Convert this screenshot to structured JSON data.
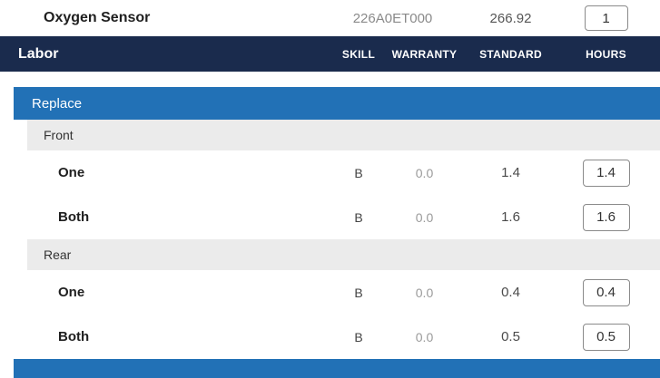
{
  "part": {
    "name": "Oxygen Sensor",
    "number": "226A0ET000",
    "price": "266.92",
    "qty": "1"
  },
  "labor": {
    "title": "Labor",
    "columns": [
      "SKILL",
      "WARRANTY",
      "STANDARD",
      "HOURS"
    ],
    "operation": "Replace",
    "groups": [
      {
        "name": "Front",
        "rows": [
          {
            "label": "One",
            "skill": "B",
            "warranty": "0.0",
            "standard": "1.4",
            "hours": "1.4"
          },
          {
            "label": "Both",
            "skill": "B",
            "warranty": "0.0",
            "standard": "1.6",
            "hours": "1.6"
          }
        ]
      },
      {
        "name": "Rear",
        "rows": [
          {
            "label": "One",
            "skill": "B",
            "warranty": "0.0",
            "standard": "0.4",
            "hours": "0.4"
          },
          {
            "label": "Both",
            "skill": "B",
            "warranty": "0.0",
            "standard": "0.5",
            "hours": "0.5"
          }
        ]
      }
    ]
  },
  "colors": {
    "navy_header": "#1a2b4d",
    "section_blue": "#2271b6",
    "group_gray": "#ebebeb"
  }
}
